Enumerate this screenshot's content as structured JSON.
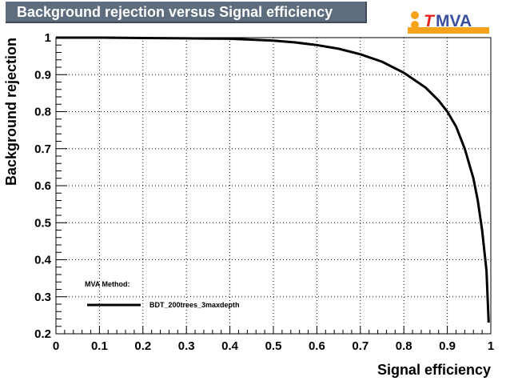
{
  "title": "Background rejection versus Signal efficiency",
  "logo": {
    "prefix": "T",
    "rest": "MVA",
    "icon": "tmva-logo-icon"
  },
  "colors": {
    "title_bg": "#5d6d7e",
    "line": "#000000",
    "logo_t": "#e8251c",
    "logo_mva": "#3a4fa0",
    "logo_orange": "#f7a21b"
  },
  "chart_data": {
    "type": "line",
    "title": "Background rejection versus Signal efficiency",
    "xlabel": "Signal efficiency",
    "ylabel": "Background rejection",
    "xlim": [
      0,
      1
    ],
    "ylim": [
      0.2,
      1
    ],
    "grid": true,
    "xticks": [
      "0",
      "0.1",
      "0.2",
      "0.3",
      "0.4",
      "0.5",
      "0.6",
      "0.7",
      "0.8",
      "0.9",
      "1"
    ],
    "yticks": [
      "0.2",
      "0.3",
      "0.4",
      "0.5",
      "0.6",
      "0.7",
      "0.8",
      "0.9",
      "1"
    ],
    "legend": {
      "header": "MVA Method:",
      "placement": "bottom-left"
    },
    "series": [
      {
        "name": "BDT_200trees_3maxdepth",
        "x": [
          0,
          0.1,
          0.2,
          0.3,
          0.4,
          0.5,
          0.55,
          0.6,
          0.65,
          0.7,
          0.75,
          0.8,
          0.85,
          0.88,
          0.9,
          0.92,
          0.94,
          0.96,
          0.97,
          0.98,
          0.99,
          0.995
        ],
        "y": [
          1.0,
          1.0,
          0.999,
          0.998,
          0.997,
          0.992,
          0.987,
          0.98,
          0.97,
          0.955,
          0.935,
          0.905,
          0.865,
          0.83,
          0.8,
          0.76,
          0.7,
          0.62,
          0.56,
          0.48,
          0.37,
          0.23
        ]
      }
    ]
  }
}
